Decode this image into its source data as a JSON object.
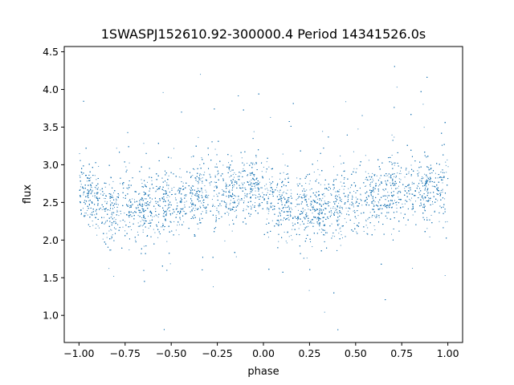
{
  "chart_data": {
    "type": "scatter",
    "title": "1SWASPJ152610.92-300000.4 Period 14341526.0s",
    "xlabel": "phase",
    "ylabel": "flux",
    "xlim": [
      -1.08,
      1.08
    ],
    "ylim": [
      0.64,
      4.57
    ],
    "x_ticks": [
      {
        "value": -1.0,
        "label": "−1.00"
      },
      {
        "value": -0.75,
        "label": "−0.75"
      },
      {
        "value": -0.5,
        "label": "−0.50"
      },
      {
        "value": -0.25,
        "label": "−0.25"
      },
      {
        "value": 0.0,
        "label": "0.00"
      },
      {
        "value": 0.25,
        "label": "0.25"
      },
      {
        "value": 0.5,
        "label": "0.50"
      },
      {
        "value": 0.75,
        "label": "0.75"
      },
      {
        "value": 1.0,
        "label": "1.00"
      }
    ],
    "y_ticks": [
      {
        "value": 1.0,
        "label": "1.0"
      },
      {
        "value": 1.5,
        "label": "1.5"
      },
      {
        "value": 2.0,
        "label": "2.0"
      },
      {
        "value": 2.5,
        "label": "2.5"
      },
      {
        "value": 3.0,
        "label": "3.0"
      },
      {
        "value": 3.5,
        "label": "3.5"
      },
      {
        "value": 4.0,
        "label": "4.0"
      },
      {
        "value": 4.5,
        "label": "4.5"
      }
    ],
    "grid": false,
    "marker_color": "#1f77b4",
    "flux_profile": {
      "phase": [
        -0.5,
        -0.45,
        -0.4,
        -0.35,
        -0.3,
        -0.25,
        -0.2,
        -0.15,
        -0.1,
        -0.05,
        0.0,
        0.05,
        0.1,
        0.15,
        0.2,
        0.25,
        0.3,
        0.35,
        0.4,
        0.45,
        0.5
      ],
      "median_flux": [
        2.45,
        2.55,
        2.6,
        2.62,
        2.65,
        2.7,
        2.68,
        2.65,
        2.7,
        2.75,
        2.7,
        2.6,
        2.5,
        2.42,
        2.4,
        2.45,
        2.42,
        2.4,
        2.45,
        2.5,
        2.48
      ]
    }
  }
}
